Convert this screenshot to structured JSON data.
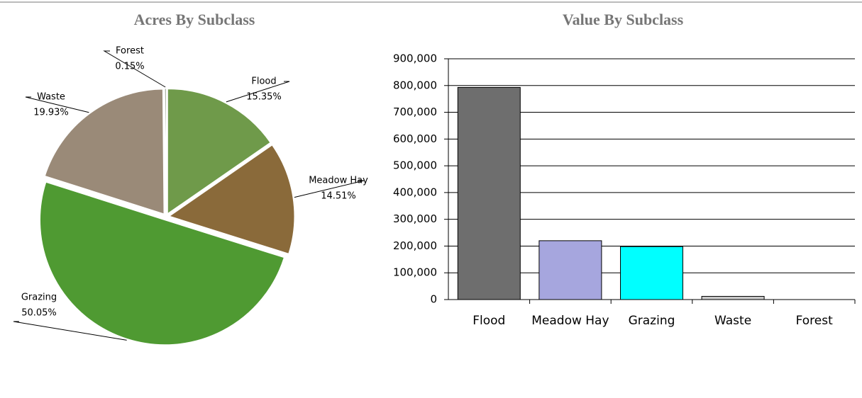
{
  "chart_data": [
    {
      "type": "pie",
      "title": "Acres By Subclass",
      "categories": [
        "Flood",
        "Meadow Hay",
        "Grazing",
        "Waste",
        "Forest"
      ],
      "values": [
        15.35,
        14.51,
        50.05,
        19.93,
        0.15
      ],
      "value_labels": [
        "15.35%",
        "14.51%",
        "50.05%",
        "19.93%",
        "0.15%"
      ],
      "colors": [
        "#6f9a4a",
        "#8a6a3a",
        "#4f9a32",
        "#9a8a78",
        "#5a6a4a"
      ]
    },
    {
      "type": "bar",
      "title": "Value By Subclass",
      "categories": [
        "Flood",
        "Meadow Hay",
        "Grazing",
        "Waste",
        "Forest"
      ],
      "values": [
        793000,
        220000,
        198000,
        12000,
        0
      ],
      "colors": [
        "#6e6e6e",
        "#a6a6de",
        "#00ffff",
        "#c8c8c8",
        "#808080"
      ],
      "ylim": [
        0,
        900000
      ],
      "yticks": [
        0,
        {
          "value": 100000,
          "label": "100,000"
        },
        {
          "value": 200000,
          "label": "200,000"
        },
        {
          "value": 300000,
          "label": "300,000"
        },
        {
          "value": 400000,
          "label": "400,000"
        },
        {
          "value": 500000,
          "label": "500,000"
        },
        {
          "value": 600000,
          "label": "600,000"
        },
        {
          "value": 700000,
          "label": "700,000"
        },
        {
          "value": 800000,
          "label": "800,000"
        },
        {
          "value": 900000,
          "label": "900,000"
        }
      ],
      "grid": true
    }
  ]
}
